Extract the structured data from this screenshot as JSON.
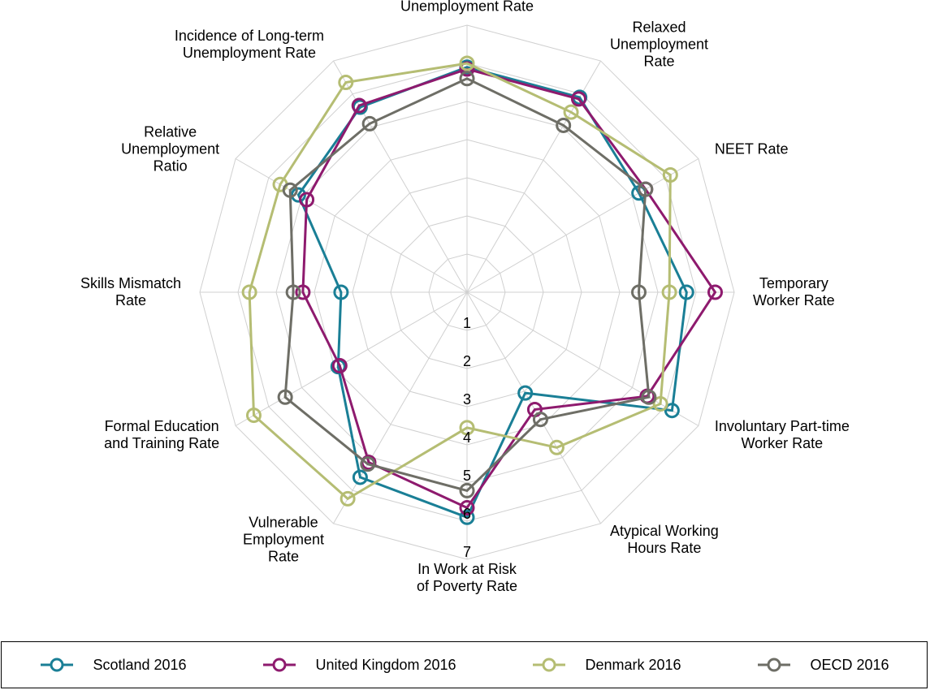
{
  "chart_data": {
    "type": "radar",
    "categories": [
      "Unemployment Rate",
      "Relaxed\nUnemployment\nRate",
      "NEET Rate",
      "Temporary\nWorker Rate",
      "Involuntary Part-time\nWorker Rate",
      "Atypical Working\nHours Rate",
      "In Work at Risk\nof Poverty Rate",
      "Vulnerable\nEmployment\nRate",
      "Formal Education\nand Training Rate",
      "Skills Mismatch\nRate",
      "Relative\nUnemployment\nRatio",
      "Incidence of Long-term\nUnemployment Rate"
    ],
    "rlim": [
      0,
      7
    ],
    "rticks": [
      1,
      2,
      3,
      4,
      5,
      6,
      7
    ],
    "grid": true,
    "series": [
      {
        "name": "Scotland 2016",
        "color": "#1a7f96",
        "values": [
          5.9,
          5.9,
          5.2,
          5.75,
          6.2,
          3.05,
          5.9,
          5.6,
          3.9,
          3.3,
          5.1,
          5.6
        ]
      },
      {
        "name": "United Kingdom 2016",
        "color": "#8e1a6e",
        "values": [
          5.85,
          5.85,
          5.4,
          6.5,
          5.45,
          3.55,
          5.65,
          5.15,
          3.85,
          4.3,
          4.85,
          5.65
        ]
      },
      {
        "name": "Denmark 2016",
        "color": "#b5bd73",
        "values": [
          6.0,
          5.45,
          6.15,
          5.3,
          5.85,
          4.7,
          3.55,
          6.25,
          6.45,
          5.7,
          5.65,
          6.35
        ]
      },
      {
        "name": "OECD 2016",
        "color": "#6e6e66",
        "values": [
          5.6,
          5.05,
          5.4,
          4.5,
          5.5,
          3.85,
          5.2,
          5.2,
          5.5,
          4.55,
          5.35,
          5.1
        ]
      }
    ]
  }
}
